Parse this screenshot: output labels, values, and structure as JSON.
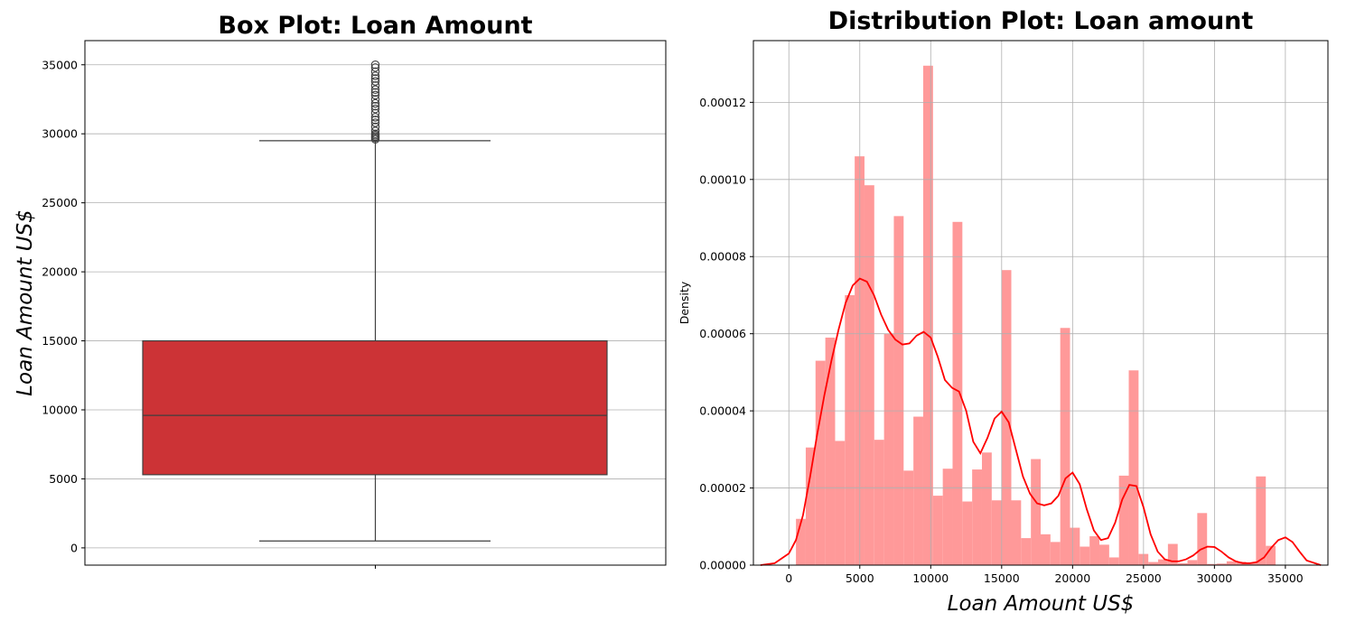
{
  "chart_data": [
    {
      "type": "box",
      "title": "Box Plot: Loan Amount",
      "xlabel": "",
      "ylabel": "Loan Amount US$",
      "ylim": [
        -1250,
        36750
      ],
      "yticks": [
        0,
        5000,
        10000,
        15000,
        20000,
        25000,
        30000,
        35000
      ],
      "grid": true,
      "box": {
        "whisker_low": 500,
        "q1": 5300,
        "median": 9600,
        "q3": 15000,
        "whisker_high": 29500,
        "outliers": [
          29600,
          29700,
          29800,
          29900,
          30000,
          30200,
          30500,
          30800,
          31000,
          31200,
          31500,
          31800,
          32000,
          32200,
          32500,
          32800,
          33000,
          33200,
          33500,
          33800,
          34000,
          34200,
          34500,
          34800,
          35000
        ]
      },
      "color": "#cc3336"
    },
    {
      "type": "histogram",
      "title": "Distribution Plot: Loan amount",
      "xlabel": "Loan Amount US$",
      "ylabel": "Density",
      "xlim": [
        -2500,
        38000
      ],
      "ylim": [
        0,
        0.000136
      ],
      "xticks": [
        0,
        5000,
        10000,
        15000,
        20000,
        25000,
        30000,
        35000
      ],
      "yticks": [
        "0.00000",
        "0.00002",
        "0.00004",
        "0.00006",
        "0.00008",
        "0.00010",
        "0.00012"
      ],
      "grid": true,
      "bin_start": 500,
      "bin_width": 690,
      "densities": [
        1.2e-05,
        3.05e-05,
        5.3e-05,
        5.9e-05,
        3.22e-05,
        7e-05,
        0.000106,
        9.85e-05,
        3.25e-05,
        6e-05,
        9.05e-05,
        2.45e-05,
        3.85e-05,
        0.0001295,
        1.8e-05,
        2.5e-05,
        8.9e-05,
        1.65e-05,
        2.48e-05,
        2.92e-05,
        1.68e-05,
        7.65e-05,
        1.68e-05,
        7e-06,
        2.75e-05,
        8e-06,
        6e-06,
        6.15e-05,
        9.7e-06,
        4.8e-06,
        7.5e-06,
        5.3e-06,
        2e-06,
        2.32e-05,
        5.05e-05,
        2.9e-06,
        8e-07,
        1.5e-06,
        5.5e-06,
        5e-07,
        1.3e-06,
        1.35e-05,
        3e-07,
        4e-07,
        1e-06,
        9e-07,
        6e-07,
        2.3e-05,
        5e-06
      ],
      "bar_color": "#ff9999",
      "kde": {
        "x": [
          -2000,
          -1000,
          0,
          500,
          1000,
          1500,
          2000,
          2500,
          3000,
          3500,
          4000,
          4500,
          5000,
          5500,
          6000,
          6500,
          7000,
          7500,
          8000,
          8500,
          9000,
          9500,
          10000,
          10500,
          11000,
          11500,
          12000,
          12500,
          13000,
          13500,
          14000,
          14500,
          15000,
          15500,
          16000,
          16500,
          17000,
          17500,
          18000,
          18500,
          19000,
          19500,
          20000,
          20500,
          21000,
          21500,
          22000,
          22500,
          23000,
          23500,
          24000,
          24500,
          25000,
          25500,
          26000,
          26500,
          27000,
          27500,
          28000,
          28500,
          29000,
          29500,
          30000,
          30500,
          31000,
          31500,
          32000,
          32500,
          33000,
          33500,
          34000,
          34500,
          35000,
          35500,
          36000,
          36500,
          37500
        ],
        "y": [
          0.0,
          5e-07,
          3e-06,
          6.5e-06,
          1.3e-05,
          2.3e-05,
          3.4e-05,
          4.4e-05,
          5.3e-05,
          6.1e-05,
          6.8e-05,
          7.25e-05,
          7.43e-05,
          7.35e-05,
          7e-05,
          6.5e-05,
          6.1e-05,
          5.85e-05,
          5.72e-05,
          5.75e-05,
          5.95e-05,
          6.05e-05,
          5.9e-05,
          5.4e-05,
          4.8e-05,
          4.6e-05,
          4.5e-05,
          4e-05,
          3.2e-05,
          2.9e-05,
          3.3e-05,
          3.8e-05,
          3.98e-05,
          3.7e-05,
          3e-05,
          2.3e-05,
          1.85e-05,
          1.6e-05,
          1.55e-05,
          1.6e-05,
          1.8e-05,
          2.25e-05,
          2.4e-05,
          2.1e-05,
          1.45e-05,
          9e-06,
          6.5e-06,
          7e-06,
          1.1e-05,
          1.7e-05,
          2.08e-05,
          2.05e-05,
          1.5e-05,
          8e-06,
          3.5e-06,
          1.5e-06,
          1e-06,
          1e-06,
          1.5e-06,
          2.5e-06,
          4e-06,
          4.8e-06,
          4.7e-06,
          3.5e-06,
          2e-06,
          1e-06,
          5e-07,
          5e-07,
          8e-07,
          2e-06,
          4.5e-06,
          6.5e-06,
          7.2e-06,
          6e-06,
          3.5e-06,
          1.2e-06,
          0.0
        ],
        "color": "#ff0000"
      }
    }
  ]
}
